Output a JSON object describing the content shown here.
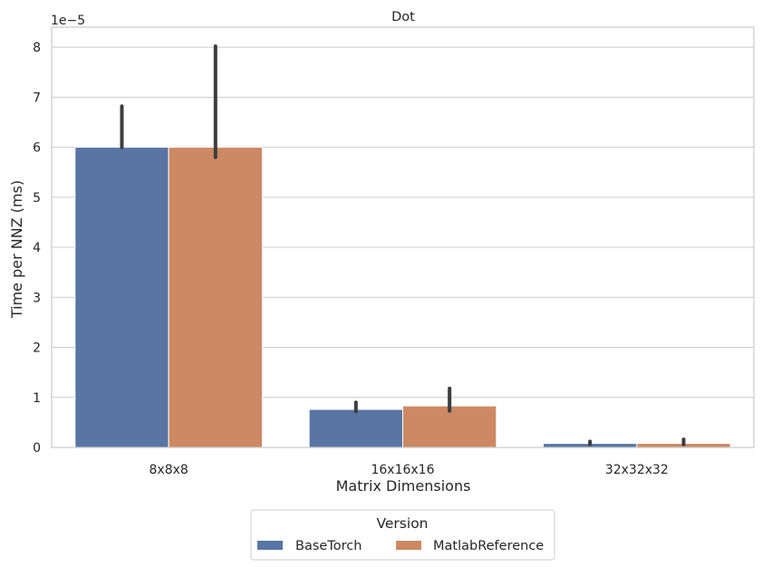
{
  "chart_data": {
    "type": "bar",
    "title": "Dot",
    "xlabel": "Matrix Dimensions",
    "ylabel": "Time per NNZ (ms)",
    "y_scale_label": "1e−5",
    "y_multiplier": 1e-05,
    "ylim": [
      0,
      8.4
    ],
    "yticks": [
      "0",
      "1",
      "2",
      "3",
      "4",
      "5",
      "6",
      "7",
      "8"
    ],
    "grid": true,
    "categories": [
      "8x8x8",
      "16x16x16",
      "32x32x32"
    ],
    "series": [
      {
        "name": "BaseTorch",
        "color": "#5875a4",
        "values": [
          6.0,
          0.76,
          0.08
        ],
        "err_low": [
          6.0,
          0.72,
          0.06
        ],
        "err_high": [
          6.82,
          0.9,
          0.12
        ]
      },
      {
        "name": "MatlabReference",
        "color": "#cc8963",
        "values": [
          6.0,
          0.83,
          0.08
        ],
        "err_low": [
          5.8,
          0.73,
          0.06
        ],
        "err_high": [
          8.02,
          1.18,
          0.16
        ]
      }
    ],
    "legend": {
      "title": "Version",
      "placement": "bottom-center"
    }
  }
}
